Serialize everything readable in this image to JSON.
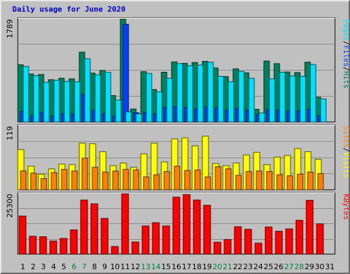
{
  "chart_data": {
    "title": "Daily usage for June 2020",
    "type": "bar",
    "days": [
      "1",
      "2",
      "3",
      "4",
      "5",
      "6",
      "7",
      "8",
      "9",
      "10",
      "11",
      "12",
      "13",
      "14",
      "15",
      "16",
      "17",
      "18",
      "19",
      "20",
      "21",
      "22",
      "23",
      "24",
      "25",
      "26",
      "27",
      "28",
      "29",
      "30",
      "31"
    ],
    "weekend_days": [
      "6",
      "7",
      "13",
      "14",
      "20",
      "21",
      "27",
      "28"
    ],
    "colors": {
      "background": "#c0c0c0",
      "plot": "#c0c0c0",
      "hits": "#00805c",
      "files": "#0040ff",
      "pages": "#00e0ff",
      "visits": "#ffff00",
      "sites": "#ff8000",
      "kbytes": "#ff0000",
      "title": "#0000cc",
      "weekend_tick": "#008040",
      "weekday_tick": "#000000"
    },
    "panels": [
      {
        "id": "hits-files-pages",
        "ymax_label": "1789",
        "ymax": 1789,
        "right_label": {
          "parts": [
            "Pages",
            "/",
            "Files",
            "/",
            "Hits"
          ],
          "colors": [
            "#00e0ff",
            "#000000",
            "#0040ff",
            "#000000",
            "#00805c"
          ]
        },
        "series": [
          {
            "name": "Hits",
            "color": "#00805c",
            "values": [
              995,
              835,
              825,
              735,
              760,
              750,
              1215,
              850,
              895,
              460,
              1789,
              225,
              875,
              565,
              865,
              1045,
              1020,
              1035,
              1055,
              940,
              790,
              925,
              855,
              220,
              1060,
              1015,
              870,
              860,
              1040,
              430,
              0
            ]
          },
          {
            "name": "Files",
            "color": "#0040ff",
            "values": [
              185,
              105,
              165,
              100,
              145,
              140,
              480,
              200,
              145,
              95,
              1700,
              160,
              165,
              140,
              250,
              270,
              255,
              225,
              260,
              245,
              205,
              235,
              205,
              130,
              215,
              210,
              190,
              195,
              220,
              115,
              0
            ]
          },
          {
            "name": "Pages",
            "color": "#00e0ff",
            "values": [
              965,
              805,
              690,
              725,
              705,
              700,
              1100,
              820,
              865,
              380,
              175,
              140,
              845,
              525,
              760,
              1015,
              980,
              990,
              1040,
              795,
              700,
              880,
              760,
              155,
              750,
              865,
              800,
              795,
              1000,
              400,
              0
            ]
          }
        ]
      },
      {
        "id": "visits-sites",
        "ymax_label": "119",
        "ymax": 119,
        "right_label": {
          "parts": [
            "Sites",
            "/",
            "Visits"
          ],
          "colors": [
            "#ff8000",
            "#000000",
            "#ffff00"
          ]
        },
        "series": [
          {
            "name": "Visits",
            "color": "#ffff00",
            "values": [
              75,
              44,
              29,
              39,
              48,
              47,
              87,
              86,
              71,
              45,
              50,
              42,
              67,
              87,
              52,
              95,
              97,
              82,
              100,
              49,
              45,
              50,
              65,
              70,
              47,
              61,
              64,
              77,
              71,
              57,
              0
            ]
          },
          {
            "name": "Sites",
            "color": "#ff8000",
            "values": [
              35,
              31,
              21,
              32,
              38,
              35,
              59,
              42,
              33,
              35,
              38,
              37,
              24,
              28,
              34,
              44,
              36,
              37,
              24,
              43,
              39,
              27,
              34,
              35,
              34,
              28,
              26,
              29,
              33,
              30,
              0
            ]
          }
        ]
      },
      {
        "id": "kbytes",
        "ymax_label": "25300",
        "ymax": 25300,
        "right_label": {
          "parts": [
            "KBytes"
          ],
          "colors": [
            "#ff0000"
          ]
        },
        "series": [
          {
            "name": "KBytes",
            "color": "#ff0000",
            "values": [
              16000,
              7500,
              7300,
              5500,
              6600,
              10200,
              22700,
              21100,
              15000,
              3200,
              25300,
              5100,
              11800,
              13200,
              11800,
              23900,
              25000,
              22700,
              20500,
              5000,
              6100,
              11500,
              10400,
              4600,
              11400,
              9600,
              10600,
              14200,
              22600,
              12700,
              0
            ]
          }
        ]
      }
    ]
  }
}
